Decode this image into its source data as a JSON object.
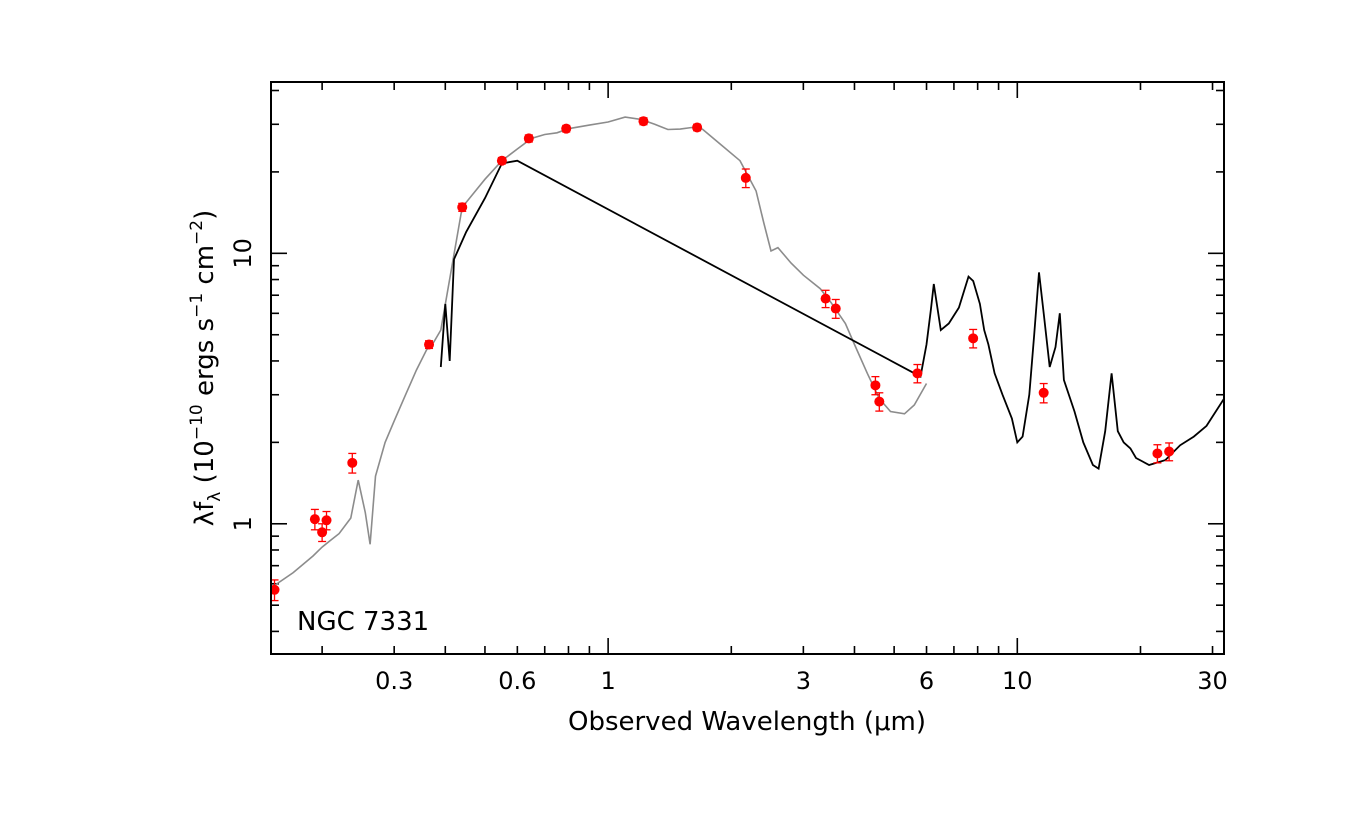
{
  "chart_data": {
    "type": "scatter",
    "annotation": "NGC 7331",
    "x_axis": {
      "label": "Observed Wavelength (μm)",
      "scale": "log",
      "range": [
        0.15,
        32
      ],
      "tick_labels": [
        {
          "value": 0.3,
          "text": "0.3"
        },
        {
          "value": 0.6,
          "text": "0.6"
        },
        {
          "value": 1,
          "text": "1"
        },
        {
          "value": 3,
          "text": "3"
        },
        {
          "value": 6,
          "text": "6"
        },
        {
          "value": 10,
          "text": "10"
        },
        {
          "value": 30,
          "text": "30"
        }
      ]
    },
    "y_axis": {
      "label_parts": {
        "lambda": "λf",
        "lambda_sub": "λ",
        "open": " (10",
        "exp1": "−10",
        "mid": " ergs s",
        "exp2": "−1",
        "mid2": " cm",
        "exp3": "−2",
        "close": ")"
      },
      "scale": "log",
      "range": [
        0.33,
        43
      ],
      "tick_labels": [
        {
          "value": 1,
          "text": "1"
        },
        {
          "value": 10,
          "text": "10"
        }
      ]
    },
    "photometry": {
      "color": "#ff0000",
      "points": [
        {
          "x": 0.153,
          "y": 0.57,
          "err": 0.05
        },
        {
          "x": 0.192,
          "y": 1.04,
          "err": 0.09
        },
        {
          "x": 0.2,
          "y": 0.93,
          "err": 0.07
        },
        {
          "x": 0.205,
          "y": 1.03,
          "err": 0.08
        },
        {
          "x": 0.237,
          "y": 1.68,
          "err": 0.14
        },
        {
          "x": 0.365,
          "y": 4.6,
          "err": 0.15
        },
        {
          "x": 0.44,
          "y": 14.8,
          "err": 0.5
        },
        {
          "x": 0.55,
          "y": 22.0,
          "err": 0.6
        },
        {
          "x": 0.64,
          "y": 26.6,
          "err": 0.8
        },
        {
          "x": 0.79,
          "y": 28.9,
          "err": 0.8
        },
        {
          "x": 1.22,
          "y": 30.8,
          "err": 0.9
        },
        {
          "x": 1.65,
          "y": 29.2,
          "err": 0.8
        },
        {
          "x": 2.17,
          "y": 19.0,
          "err": 1.5
        },
        {
          "x": 3.4,
          "y": 6.8,
          "err": 0.5
        },
        {
          "x": 3.6,
          "y": 6.25,
          "err": 0.5
        },
        {
          "x": 4.5,
          "y": 3.25,
          "err": 0.25
        },
        {
          "x": 4.6,
          "y": 2.83,
          "err": 0.22
        },
        {
          "x": 5.7,
          "y": 3.6,
          "err": 0.28
        },
        {
          "x": 7.8,
          "y": 4.85,
          "err": 0.38
        },
        {
          "x": 11.6,
          "y": 3.05,
          "err": 0.25
        },
        {
          "x": 22.0,
          "y": 1.82,
          "err": 0.14
        },
        {
          "x": 23.5,
          "y": 1.85,
          "err": 0.14
        }
      ]
    },
    "template_spectrum": {
      "color": "#8c8c8c",
      "points": [
        [
          0.15,
          0.58
        ],
        [
          0.17,
          0.66
        ],
        [
          0.19,
          0.76
        ],
        [
          0.2,
          0.82
        ],
        [
          0.21,
          0.87
        ],
        [
          0.22,
          0.92
        ],
        [
          0.235,
          1.05
        ],
        [
          0.245,
          1.45
        ],
        [
          0.255,
          1.1
        ],
        [
          0.262,
          0.84
        ],
        [
          0.27,
          1.5
        ],
        [
          0.285,
          2.0
        ],
        [
          0.3,
          2.4
        ],
        [
          0.32,
          3.0
        ],
        [
          0.34,
          3.7
        ],
        [
          0.36,
          4.4
        ],
        [
          0.375,
          4.7
        ],
        [
          0.39,
          5.2
        ],
        [
          0.44,
          14.8
        ],
        [
          0.5,
          18.8
        ],
        [
          0.55,
          22.0
        ],
        [
          0.6,
          24.3
        ],
        [
          0.65,
          26.6
        ],
        [
          0.7,
          27.5
        ],
        [
          0.75,
          27.9
        ],
        [
          0.8,
          28.9
        ],
        [
          0.9,
          29.8
        ],
        [
          1.0,
          30.6
        ],
        [
          1.1,
          31.9
        ],
        [
          1.2,
          31.3
        ],
        [
          1.3,
          30.0
        ],
        [
          1.4,
          28.7
        ],
        [
          1.5,
          28.8
        ],
        [
          1.6,
          29.2
        ],
        [
          1.7,
          28.8
        ],
        [
          1.9,
          25.0
        ],
        [
          2.1,
          22.0
        ],
        [
          2.3,
          17.0
        ],
        [
          2.4,
          13.0
        ],
        [
          2.5,
          10.2
        ],
        [
          2.6,
          10.5
        ],
        [
          2.8,
          9.2
        ],
        [
          3.0,
          8.3
        ],
        [
          3.3,
          7.4
        ],
        [
          3.5,
          6.6
        ],
        [
          3.8,
          5.5
        ],
        [
          4.0,
          4.6
        ],
        [
          4.3,
          3.6
        ],
        [
          4.6,
          2.9
        ],
        [
          4.9,
          2.6
        ],
        [
          5.3,
          2.55
        ],
        [
          5.6,
          2.75
        ],
        [
          6.0,
          3.3
        ]
      ]
    },
    "observed_spectrum": {
      "color": "#000000",
      "points": [
        [
          0.39,
          3.8
        ],
        [
          0.4,
          6.5
        ],
        [
          0.41,
          4.0
        ],
        [
          0.42,
          9.5
        ],
        [
          0.45,
          12.0
        ],
        [
          0.5,
          16.0
        ],
        [
          0.55,
          21.5
        ],
        [
          0.6,
          22.0
        ],
        [
          5.8,
          3.5
        ],
        [
          6.0,
          4.6
        ],
        [
          6.15,
          6.2
        ],
        [
          6.25,
          7.7
        ],
        [
          6.5,
          5.2
        ],
        [
          6.8,
          5.5
        ],
        [
          7.2,
          6.3
        ],
        [
          7.6,
          8.2
        ],
        [
          7.8,
          7.9
        ],
        [
          8.1,
          6.5
        ],
        [
          8.3,
          5.2
        ],
        [
          8.5,
          4.6
        ],
        [
          8.8,
          3.6
        ],
        [
          9.2,
          3.0
        ],
        [
          9.7,
          2.45
        ],
        [
          10.0,
          2.0
        ],
        [
          10.3,
          2.1
        ],
        [
          10.7,
          3.0
        ],
        [
          11.0,
          5.0
        ],
        [
          11.3,
          8.5
        ],
        [
          11.6,
          6.0
        ],
        [
          12.0,
          3.8
        ],
        [
          12.4,
          4.5
        ],
        [
          12.7,
          6.0
        ],
        [
          13.0,
          3.4
        ],
        [
          13.8,
          2.6
        ],
        [
          14.5,
          2.0
        ],
        [
          15.3,
          1.65
        ],
        [
          15.8,
          1.6
        ],
        [
          16.4,
          2.2
        ],
        [
          17.0,
          3.6
        ],
        [
          17.6,
          2.2
        ],
        [
          18.2,
          2.0
        ],
        [
          18.9,
          1.9
        ],
        [
          19.5,
          1.75
        ],
        [
          21.0,
          1.65
        ],
        [
          23.0,
          1.72
        ],
        [
          25.0,
          1.95
        ],
        [
          27.0,
          2.1
        ],
        [
          29.0,
          2.3
        ],
        [
          32.0,
          2.9
        ]
      ]
    }
  }
}
